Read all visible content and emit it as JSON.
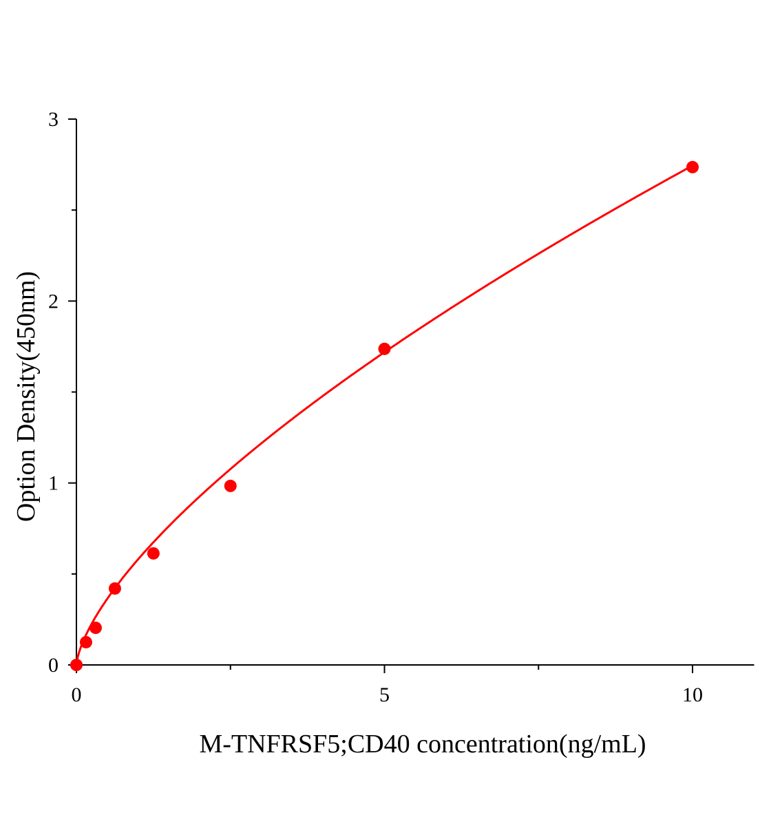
{
  "chart_data": {
    "type": "scatter",
    "title": "",
    "xlabel": "M-TNFRSF5;CD40 concentration(ng/mL)",
    "ylabel": "Option Density(450nm)",
    "xlim": [
      0,
      11
    ],
    "ylim": [
      0,
      3
    ],
    "x_ticks": [
      0,
      5,
      10
    ],
    "x_tick_labels": [
      "0",
      "5",
      "10"
    ],
    "x_minor_ticks": [
      2.5,
      7.5
    ],
    "y_ticks": [
      0,
      1,
      2,
      3
    ],
    "y_tick_labels": [
      "0",
      "1",
      "2",
      "3"
    ],
    "y_minor_ticks": [
      0.5,
      1.5,
      2.5
    ],
    "grid": false,
    "color": "#ff0000",
    "points": {
      "x": [
        0,
        0.156,
        0.3125,
        0.625,
        1.25,
        2.5,
        5,
        10
      ],
      "y": [
        0.0,
        0.125,
        0.204,
        0.42,
        0.613,
        0.984,
        1.737,
        2.736
      ]
    },
    "fit_curve": {
      "type": "power",
      "a": 0.58,
      "b": 0.675
    }
  }
}
